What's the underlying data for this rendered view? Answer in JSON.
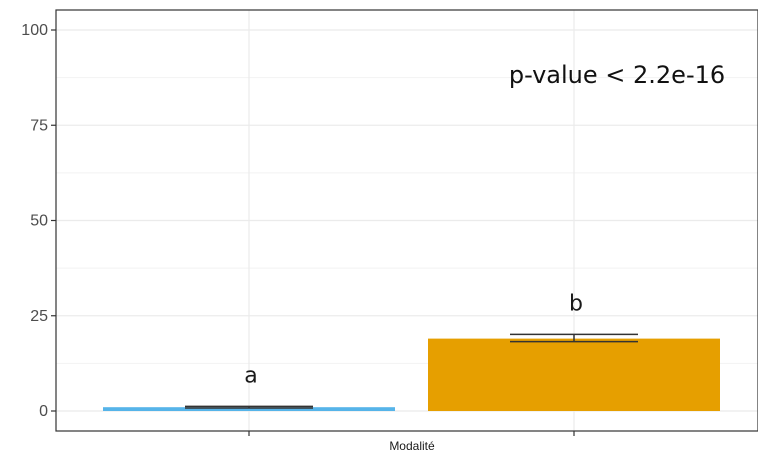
{
  "chart_data": {
    "type": "bar",
    "categories": [
      "",
      ""
    ],
    "values": [
      1,
      19
    ],
    "errors": [
      [
        0.8,
        1.2
      ],
      [
        18.2,
        20.1
      ]
    ],
    "significance_letters": [
      "a",
      "b"
    ],
    "colors": [
      "#56B4E9",
      "#E69F00"
    ],
    "annotation": "p-value < 2.2e-16",
    "xlabel": "Modalité",
    "ylabel": "",
    "ylim": [
      0,
      100
    ],
    "yticks": [
      0,
      25,
      50,
      75,
      100
    ],
    "grid": true,
    "legend": "none"
  }
}
